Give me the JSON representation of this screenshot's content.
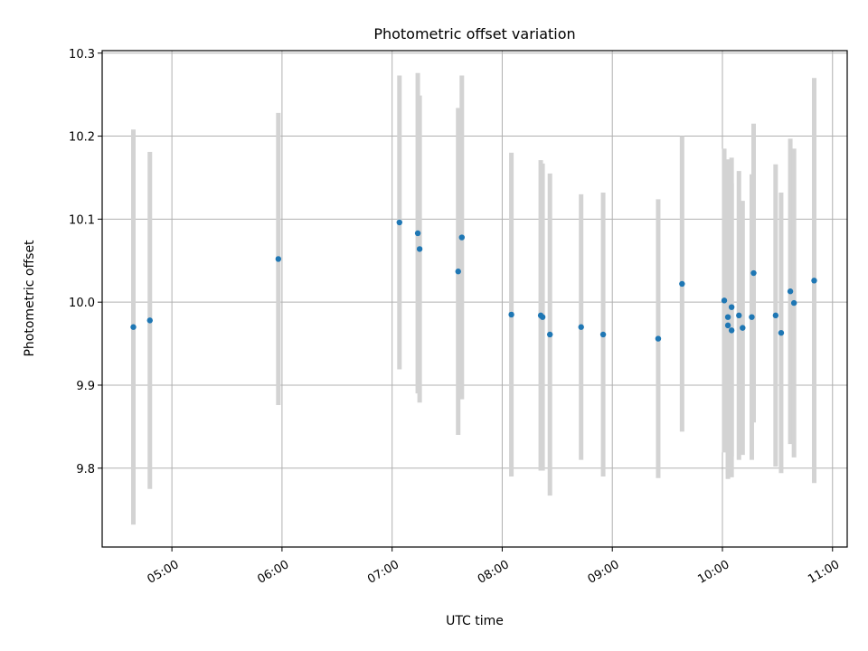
{
  "chart_data": {
    "type": "scatter",
    "title": "Photometric offset variation",
    "xlabel": "UTC time",
    "ylabel": "Photometric offset",
    "x_ticks": [
      "05:00",
      "06:00",
      "07:00",
      "08:00",
      "09:00",
      "10:00",
      "11:00"
    ],
    "y_ticks": [
      "9.8",
      "9.9",
      "10.0",
      "10.1",
      "10.2",
      "10.3"
    ],
    "xlim": [
      "04:22",
      "11:08"
    ],
    "ylim": [
      9.705,
      10.303
    ],
    "grid": true,
    "point_color": "#1f77b4",
    "errorbar_color": "#d3d3d3",
    "points": [
      {
        "x": "04:39",
        "y": 9.97,
        "yerr": 0.238
      },
      {
        "x": "04:48",
        "y": 9.978,
        "yerr": 0.203
      },
      {
        "x": "05:58",
        "y": 10.052,
        "yerr": 0.176
      },
      {
        "x": "07:04",
        "y": 10.096,
        "yerr": 0.177
      },
      {
        "x": "07:14",
        "y": 10.083,
        "yerr": 0.193
      },
      {
        "x": "07:15",
        "y": 10.064,
        "yerr": 0.185
      },
      {
        "x": "07:36",
        "y": 10.037,
        "yerr": 0.197
      },
      {
        "x": "07:38",
        "y": 10.078,
        "yerr": 0.195
      },
      {
        "x": "08:05",
        "y": 9.985,
        "yerr": 0.195
      },
      {
        "x": "08:21",
        "y": 9.984,
        "yerr": 0.187
      },
      {
        "x": "08:22",
        "y": 9.982,
        "yerr": 0.185
      },
      {
        "x": "08:26",
        "y": 9.961,
        "yerr": 0.194
      },
      {
        "x": "08:43",
        "y": 9.97,
        "yerr": 0.16
      },
      {
        "x": "08:55",
        "y": 9.961,
        "yerr": 0.171
      },
      {
        "x": "09:25",
        "y": 9.956,
        "yerr": 0.168
      },
      {
        "x": "09:38",
        "y": 10.022,
        "yerr": 0.178
      },
      {
        "x": "10:01",
        "y": 10.002,
        "yerr": 0.183
      },
      {
        "x": "10:03",
        "y": 9.972,
        "yerr": 0.185
      },
      {
        "x": "10:03",
        "y": 9.982,
        "yerr": 0.19
      },
      {
        "x": "10:05",
        "y": 9.966,
        "yerr": 0.177
      },
      {
        "x": "10:05",
        "y": 9.994,
        "yerr": 0.18
      },
      {
        "x": "10:09",
        "y": 9.984,
        "yerr": 0.174
      },
      {
        "x": "10:11",
        "y": 9.969,
        "yerr": 0.153
      },
      {
        "x": "10:16",
        "y": 9.982,
        "yerr": 0.172
      },
      {
        "x": "10:17",
        "y": 10.035,
        "yerr": 0.18
      },
      {
        "x": "10:29",
        "y": 9.984,
        "yerr": 0.182
      },
      {
        "x": "10:32",
        "y": 9.963,
        "yerr": 0.169
      },
      {
        "x": "10:37",
        "y": 10.013,
        "yerr": 0.184
      },
      {
        "x": "10:39",
        "y": 9.999,
        "yerr": 0.186
      },
      {
        "x": "10:50",
        "y": 10.026,
        "yerr": 0.244
      }
    ]
  }
}
